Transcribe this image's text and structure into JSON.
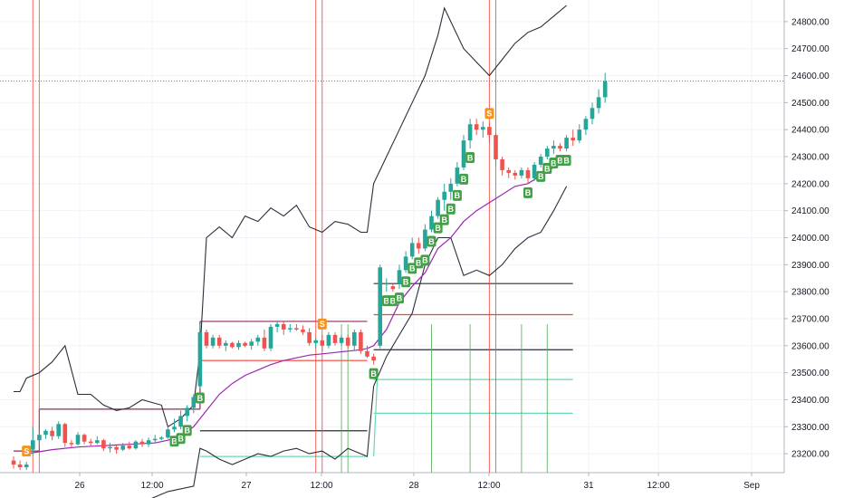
{
  "chart_data": {
    "type": "candlestick",
    "title": "",
    "xlabel": "",
    "ylabel": "",
    "ylim": [
      23130,
      24880
    ],
    "y_ticks": [
      "23200.00",
      "23300.00",
      "23400.00",
      "23500.00",
      "23600.00",
      "23700.00",
      "23800.00",
      "23900.00",
      "24000.00",
      "24100.00",
      "24200.00",
      "24300.00",
      "24400.00",
      "24500.00",
      "24600.00",
      "24700.00",
      "24800.00"
    ],
    "x_ticks": [
      "26",
      "12:00",
      "27",
      "12:00",
      "28",
      "12:00",
      "31",
      "12:00",
      "Sep"
    ],
    "grid": true,
    "colors": {
      "up": "#26a69a",
      "down": "#ef5350",
      "buy_signal": "#43a047",
      "sell_signal": "#f7931a",
      "ma": "#9c27b0",
      "band": "#2a2e39",
      "vline_red": "#f44336",
      "vline_green": "#4caf50"
    },
    "signal_labels": {
      "buy": "B",
      "sell": "S"
    },
    "last_price": 24580,
    "candles": [
      {
        "o": 23175,
        "h": 23190,
        "l": 23145,
        "c": 23160
      },
      {
        "o": 23160,
        "h": 23175,
        "l": 23140,
        "c": 23150
      },
      {
        "o": 23150,
        "h": 23170,
        "l": 23140,
        "c": 23160
      },
      {
        "o": 23215,
        "h": 23300,
        "l": 23195,
        "c": 23250
      },
      {
        "o": 23250,
        "h": 23280,
        "l": 23230,
        "c": 23270
      },
      {
        "o": 23270,
        "h": 23290,
        "l": 23255,
        "c": 23285
      },
      {
        "o": 23285,
        "h": 23300,
        "l": 23250,
        "c": 23265
      },
      {
        "o": 23265,
        "h": 23320,
        "l": 23255,
        "c": 23310
      },
      {
        "o": 23310,
        "h": 23315,
        "l": 23225,
        "c": 23240
      },
      {
        "o": 23240,
        "h": 23250,
        "l": 23225,
        "c": 23235
      },
      {
        "o": 23235,
        "h": 23280,
        "l": 23230,
        "c": 23270
      },
      {
        "o": 23270,
        "h": 23275,
        "l": 23235,
        "c": 23245
      },
      {
        "o": 23245,
        "h": 23255,
        "l": 23230,
        "c": 23240
      },
      {
        "o": 23240,
        "h": 23265,
        "l": 23235,
        "c": 23250
      },
      {
        "o": 23250,
        "h": 23255,
        "l": 23210,
        "c": 23220
      },
      {
        "o": 23220,
        "h": 23240,
        "l": 23205,
        "c": 23225
      },
      {
        "o": 23225,
        "h": 23230,
        "l": 23200,
        "c": 23215
      },
      {
        "o": 23215,
        "h": 23240,
        "l": 23210,
        "c": 23230
      },
      {
        "o": 23230,
        "h": 23245,
        "l": 23215,
        "c": 23220
      },
      {
        "o": 23220,
        "h": 23250,
        "l": 23215,
        "c": 23245
      },
      {
        "o": 23245,
        "h": 23255,
        "l": 23225,
        "c": 23235
      },
      {
        "o": 23235,
        "h": 23260,
        "l": 23225,
        "c": 23250
      },
      {
        "o": 23250,
        "h": 23270,
        "l": 23240,
        "c": 23255
      },
      {
        "o": 23255,
        "h": 23265,
        "l": 23250,
        "c": 23260
      },
      {
        "o": 23260,
        "h": 23300,
        "l": 23255,
        "c": 23290
      },
      {
        "o": 23290,
        "h": 23330,
        "l": 23280,
        "c": 23300
      },
      {
        "o": 23300,
        "h": 23360,
        "l": 23290,
        "c": 23340
      },
      {
        "o": 23340,
        "h": 23380,
        "l": 23320,
        "c": 23370
      },
      {
        "o": 23370,
        "h": 23420,
        "l": 23350,
        "c": 23410
      },
      {
        "o": 23450,
        "h": 23680,
        "l": 23440,
        "c": 23650
      },
      {
        "o": 23650,
        "h": 23660,
        "l": 23590,
        "c": 23600
      },
      {
        "o": 23600,
        "h": 23640,
        "l": 23590,
        "c": 23630
      },
      {
        "o": 23630,
        "h": 23640,
        "l": 23590,
        "c": 23600
      },
      {
        "o": 23600,
        "h": 23620,
        "l": 23580,
        "c": 23610
      },
      {
        "o": 23610,
        "h": 23615,
        "l": 23590,
        "c": 23595
      },
      {
        "o": 23595,
        "h": 23620,
        "l": 23585,
        "c": 23610
      },
      {
        "o": 23610,
        "h": 23615,
        "l": 23595,
        "c": 23600
      },
      {
        "o": 23600,
        "h": 23625,
        "l": 23585,
        "c": 23615
      },
      {
        "o": 23615,
        "h": 23640,
        "l": 23600,
        "c": 23630
      },
      {
        "o": 23630,
        "h": 23660,
        "l": 23580,
        "c": 23590
      },
      {
        "o": 23590,
        "h": 23680,
        "l": 23580,
        "c": 23670
      },
      {
        "o": 23670,
        "h": 23690,
        "l": 23650,
        "c": 23680
      },
      {
        "o": 23680,
        "h": 23690,
        "l": 23640,
        "c": 23660
      },
      {
        "o": 23660,
        "h": 23680,
        "l": 23650,
        "c": 23665
      },
      {
        "o": 23665,
        "h": 23680,
        "l": 23655,
        "c": 23660
      },
      {
        "o": 23660,
        "h": 23675,
        "l": 23640,
        "c": 23650
      },
      {
        "o": 23650,
        "h": 23665,
        "l": 23600,
        "c": 23610
      },
      {
        "o": 23610,
        "h": 23630,
        "l": 23590,
        "c": 23620
      },
      {
        "o": 23620,
        "h": 23640,
        "l": 23580,
        "c": 23600
      },
      {
        "o": 23600,
        "h": 23650,
        "l": 23590,
        "c": 23640
      },
      {
        "o": 23640,
        "h": 23650,
        "l": 23600,
        "c": 23610
      },
      {
        "o": 23610,
        "h": 23640,
        "l": 23600,
        "c": 23630
      },
      {
        "o": 23630,
        "h": 23640,
        "l": 23590,
        "c": 23600
      },
      {
        "o": 23600,
        "h": 23660,
        "l": 23580,
        "c": 23650
      },
      {
        "o": 23650,
        "h": 23660,
        "l": 23570,
        "c": 23580
      },
      {
        "o": 23580,
        "h": 23600,
        "l": 23555,
        "c": 23560
      },
      {
        "o": 23560,
        "h": 23570,
        "l": 23530,
        "c": 23545
      },
      {
        "o": 23600,
        "h": 23900,
        "l": 23590,
        "c": 23890
      },
      {
        "o": 23830,
        "h": 23850,
        "l": 23800,
        "c": 23830
      },
      {
        "o": 23820,
        "h": 23830,
        "l": 23800,
        "c": 23810
      },
      {
        "o": 23830,
        "h": 23900,
        "l": 23810,
        "c": 23880
      },
      {
        "o": 23880,
        "h": 23950,
        "l": 23870,
        "c": 23930
      },
      {
        "o": 23930,
        "h": 24000,
        "l": 23920,
        "c": 23980
      },
      {
        "o": 23980,
        "h": 24000,
        "l": 23940,
        "c": 23960
      },
      {
        "o": 23960,
        "h": 24050,
        "l": 23950,
        "c": 24030
      },
      {
        "o": 24030,
        "h": 24100,
        "l": 24020,
        "c": 24080
      },
      {
        "o": 24080,
        "h": 24150,
        "l": 24070,
        "c": 24140
      },
      {
        "o": 24140,
        "h": 24200,
        "l": 24100,
        "c": 24170
      },
      {
        "o": 24170,
        "h": 24220,
        "l": 24140,
        "c": 24200
      },
      {
        "o": 24200,
        "h": 24280,
        "l": 24190,
        "c": 24260
      },
      {
        "o": 24260,
        "h": 24380,
        "l": 24250,
        "c": 24360
      },
      {
        "o": 24360,
        "h": 24440,
        "l": 24330,
        "c": 24420
      },
      {
        "o": 24420,
        "h": 24440,
        "l": 24380,
        "c": 24400
      },
      {
        "o": 24400,
        "h": 24430,
        "l": 24370,
        "c": 24410
      },
      {
        "o": 24410,
        "h": 24420,
        "l": 24350,
        "c": 24380
      },
      {
        "o": 24380,
        "h": 24390,
        "l": 24270,
        "c": 24290
      },
      {
        "o": 24290,
        "h": 24300,
        "l": 24230,
        "c": 24250
      },
      {
        "o": 24250,
        "h": 24260,
        "l": 24220,
        "c": 24240
      },
      {
        "o": 24240,
        "h": 24250,
        "l": 24215,
        "c": 24230
      },
      {
        "o": 24230,
        "h": 24260,
        "l": 24220,
        "c": 24250
      },
      {
        "o": 24250,
        "h": 24260,
        "l": 24200,
        "c": 24220
      },
      {
        "o": 24220,
        "h": 24280,
        "l": 24210,
        "c": 24270
      },
      {
        "o": 24270,
        "h": 24310,
        "l": 24260,
        "c": 24300
      },
      {
        "o": 24300,
        "h": 24340,
        "l": 24290,
        "c": 24330
      },
      {
        "o": 24330,
        "h": 24360,
        "l": 24310,
        "c": 24340
      },
      {
        "o": 24340,
        "h": 24350,
        "l": 24320,
        "c": 24330
      },
      {
        "o": 24330,
        "h": 24380,
        "l": 24320,
        "c": 24370
      },
      {
        "o": 24370,
        "h": 24400,
        "l": 24340,
        "c": 24360
      },
      {
        "o": 24360,
        "h": 24420,
        "l": 24350,
        "c": 24400
      },
      {
        "o": 24400,
        "h": 24450,
        "l": 24380,
        "c": 24440
      },
      {
        "o": 24440,
        "h": 24500,
        "l": 24420,
        "c": 24480
      },
      {
        "o": 24480,
        "h": 24550,
        "l": 24460,
        "c": 24520
      },
      {
        "o": 24520,
        "h": 24610,
        "l": 24500,
        "c": 24580
      }
    ],
    "signals": [
      {
        "type": "sell",
        "bar": 2
      },
      {
        "type": "buy",
        "bar": 25
      },
      {
        "type": "buy",
        "bar": 26
      },
      {
        "type": "buy",
        "bar": 27
      },
      {
        "type": "buy",
        "bar": 29
      },
      {
        "type": "sell",
        "bar": 48
      },
      {
        "type": "buy",
        "bar": 56
      },
      {
        "type": "buy",
        "bar": 58
      },
      {
        "type": "buy",
        "bar": 59
      },
      {
        "type": "buy",
        "bar": 60
      },
      {
        "type": "buy",
        "bar": 61
      },
      {
        "type": "buy",
        "bar": 62
      },
      {
        "type": "buy",
        "bar": 63
      },
      {
        "type": "buy",
        "bar": 64
      },
      {
        "type": "buy",
        "bar": 65
      },
      {
        "type": "buy",
        "bar": 66
      },
      {
        "type": "buy",
        "bar": 67
      },
      {
        "type": "buy",
        "bar": 68
      },
      {
        "type": "buy",
        "bar": 69
      },
      {
        "type": "buy",
        "bar": 70
      },
      {
        "type": "buy",
        "bar": 71
      },
      {
        "type": "sell",
        "bar": 74
      },
      {
        "type": "buy",
        "bar": 80
      },
      {
        "type": "buy",
        "bar": 82
      },
      {
        "type": "buy",
        "bar": 83
      },
      {
        "type": "buy",
        "bar": 84
      },
      {
        "type": "buy",
        "bar": 85
      },
      {
        "type": "buy",
        "bar": 86
      }
    ],
    "upper_band": [
      [
        0,
        23430
      ],
      [
        1,
        23430
      ],
      [
        2,
        23480
      ],
      [
        4,
        23500
      ],
      [
        6,
        23540
      ],
      [
        8,
        23600
      ],
      [
        10,
        23420
      ],
      [
        12,
        23420
      ],
      [
        14,
        23380
      ],
      [
        16,
        23360
      ],
      [
        18,
        23370
      ],
      [
        20,
        23400
      ],
      [
        23,
        23380
      ],
      [
        24,
        23300
      ],
      [
        26,
        23330
      ],
      [
        28,
        23380
      ],
      [
        29,
        23580
      ],
      [
        30,
        24000
      ],
      [
        32,
        24040
      ],
      [
        34,
        24000
      ],
      [
        36,
        24080
      ],
      [
        38,
        24060
      ],
      [
        40,
        24110
      ],
      [
        42,
        24080
      ],
      [
        44,
        24120
      ],
      [
        46,
        24040
      ],
      [
        48,
        24020
      ],
      [
        50,
        24060
      ],
      [
        52,
        24050
      ],
      [
        54,
        24020
      ],
      [
        55,
        24020
      ],
      [
        56,
        24200
      ],
      [
        58,
        24300
      ],
      [
        60,
        24400
      ],
      [
        62,
        24500
      ],
      [
        64,
        24600
      ],
      [
        66,
        24750
      ],
      [
        67,
        24850
      ],
      [
        68,
        24800
      ],
      [
        70,
        24700
      ],
      [
        72,
        24650
      ],
      [
        74,
        24600
      ],
      [
        76,
        24660
      ],
      [
        78,
        24720
      ],
      [
        80,
        24760
      ],
      [
        82,
        24780
      ],
      [
        84,
        24820
      ],
      [
        86,
        24860
      ]
    ],
    "lower_band": [
      [
        0,
        23000
      ],
      [
        4,
        22980
      ],
      [
        8,
        22970
      ],
      [
        12,
        22990
      ],
      [
        16,
        23000
      ],
      [
        20,
        23020
      ],
      [
        24,
        23060
      ],
      [
        28,
        23080
      ],
      [
        29,
        23220
      ],
      [
        30,
        23210
      ],
      [
        32,
        23180
      ],
      [
        34,
        23160
      ],
      [
        36,
        23180
      ],
      [
        38,
        23200
      ],
      [
        40,
        23190
      ],
      [
        42,
        23210
      ],
      [
        44,
        23220
      ],
      [
        46,
        23200
      ],
      [
        48,
        23210
      ],
      [
        50,
        23180
      ],
      [
        52,
        23220
      ],
      [
        54,
        23200
      ],
      [
        55,
        23190
      ],
      [
        56,
        23450
      ],
      [
        58,
        23560
      ],
      [
        60,
        23640
      ],
      [
        62,
        23720
      ],
      [
        64,
        23900
      ],
      [
        66,
        24000
      ],
      [
        68,
        24000
      ],
      [
        70,
        23860
      ],
      [
        72,
        23880
      ],
      [
        74,
        23860
      ],
      [
        76,
        23900
      ],
      [
        78,
        23960
      ],
      [
        80,
        24000
      ],
      [
        82,
        24020
      ],
      [
        84,
        24100
      ],
      [
        86,
        24190
      ]
    ],
    "moving_average": [
      [
        2,
        23200
      ],
      [
        6,
        23215
      ],
      [
        10,
        23225
      ],
      [
        14,
        23230
      ],
      [
        18,
        23235
      ],
      [
        22,
        23240
      ],
      [
        24,
        23250
      ],
      [
        26,
        23265
      ],
      [
        28,
        23300
      ],
      [
        30,
        23360
      ],
      [
        32,
        23420
      ],
      [
        34,
        23460
      ],
      [
        36,
        23490
      ],
      [
        38,
        23510
      ],
      [
        40,
        23530
      ],
      [
        42,
        23545
      ],
      [
        44,
        23555
      ],
      [
        46,
        23565
      ],
      [
        48,
        23570
      ],
      [
        50,
        23575
      ],
      [
        52,
        23580
      ],
      [
        54,
        23585
      ],
      [
        55,
        23590
      ],
      [
        56,
        23600
      ],
      [
        58,
        23660
      ],
      [
        60,
        23760
      ],
      [
        62,
        23820
      ],
      [
        64,
        23870
      ],
      [
        66,
        23960
      ],
      [
        68,
        24000
      ],
      [
        70,
        24060
      ],
      [
        72,
        24100
      ],
      [
        74,
        24130
      ],
      [
        76,
        24160
      ],
      [
        78,
        24190
      ],
      [
        80,
        24200
      ],
      [
        82,
        24230
      ],
      [
        84,
        24260
      ],
      [
        86,
        24290
      ]
    ],
    "range_high_levels": [
      {
        "from": 0,
        "to": 4,
        "y": 23210
      },
      {
        "from": 4,
        "to": 29,
        "y": 23365
      },
      {
        "from": 29,
        "to": 55,
        "y": 23690
      }
    ],
    "range_low_levels": [
      {
        "from": 29,
        "to": 55,
        "y": 23545
      },
      {
        "from": 56,
        "to": 87,
        "y": 23715
      }
    ],
    "dark_levels": [
      {
        "from": 29,
        "to": 55,
        "y": 23285
      },
      {
        "from": 56,
        "to": 87,
        "y": 23830
      },
      {
        "from": 56,
        "to": 87,
        "y": 23585
      }
    ],
    "green_levels": [
      {
        "from": 29,
        "to": 55,
        "y": 23190
      },
      {
        "from": 56,
        "to": 87,
        "y": 23475
      },
      {
        "from": 56,
        "to": 87,
        "y": 23350
      }
    ],
    "red_vlines": [
      3,
      4,
      47,
      48,
      74,
      75
    ],
    "green_vlines": [
      51,
      52,
      65,
      71,
      79,
      83
    ]
  }
}
